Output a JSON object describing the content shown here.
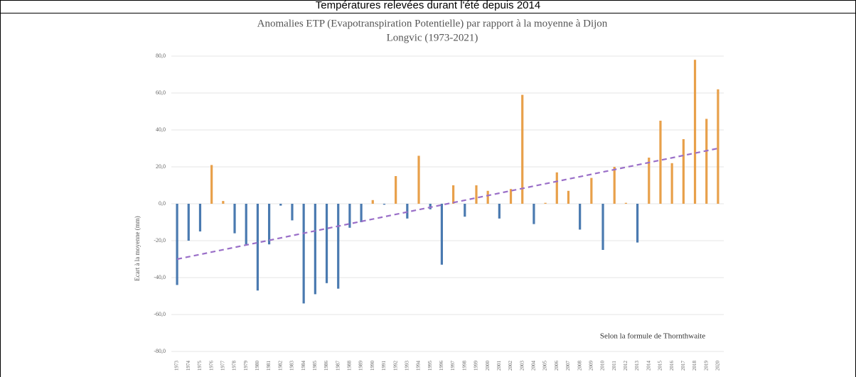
{
  "caption": "Températures relevées durant l'été depuis 2014",
  "chart_data": {
    "type": "bar",
    "title": "Anomalies ETP (Evapotranspiration Potentielle) par rapport à la moyenne à Dijon",
    "subtitle": "Longvic (1973-2021)",
    "y_label": "Ecart à la moyenne (mm)",
    "annotation": "Selon la formule de Thornthwaite",
    "categories": [
      "1973",
      "1974",
      "1975",
      "1976",
      "1977",
      "1978",
      "1979",
      "1980",
      "1981",
      "1982",
      "1983",
      "1984",
      "1985",
      "1986",
      "1987",
      "1988",
      "1989",
      "1990",
      "1991",
      "1992",
      "1993",
      "1994",
      "1995",
      "1996",
      "1997",
      "1998",
      "1999",
      "2000",
      "2001",
      "2002",
      "2003",
      "2004",
      "2005",
      "2006",
      "2007",
      "2008",
      "2009",
      "2010",
      "2011",
      "2012",
      "2013",
      "2014",
      "2015",
      "2016",
      "2017",
      "2018",
      "2019",
      "2020"
    ],
    "values": [
      -44,
      -20,
      -15,
      21,
      1.5,
      -16,
      -22,
      -47,
      -22,
      -1,
      -9,
      -54,
      -49,
      -43,
      -46,
      -13,
      -10,
      2,
      -0.5,
      15,
      -8,
      26,
      -3,
      -33,
      10,
      -7,
      10,
      7,
      -8,
      8,
      59,
      -11,
      0.5,
      17,
      7,
      -14,
      14,
      -25,
      20,
      0.5,
      -21,
      25,
      45,
      22,
      35,
      78,
      46,
      62
    ],
    "positive_color": "#e8a04a",
    "negative_color": "#4a7ab0",
    "trendline": {
      "values": [
        -30,
        30
      ],
      "color": "#9a6fc8"
    },
    "ylim": [
      -80,
      80
    ],
    "yticks": [
      {
        "value": -80,
        "label": "-80,0"
      },
      {
        "value": -60,
        "label": "-60,0"
      },
      {
        "value": -40,
        "label": "-40,0"
      },
      {
        "value": -20,
        "label": "-20,0"
      },
      {
        "value": 0,
        "label": "0,0"
      },
      {
        "value": 20,
        "label": "20,0"
      },
      {
        "value": 40,
        "label": "40,0"
      },
      {
        "value": 60,
        "label": "60,0"
      },
      {
        "value": 80,
        "label": "80,0"
      }
    ],
    "grid": true
  }
}
